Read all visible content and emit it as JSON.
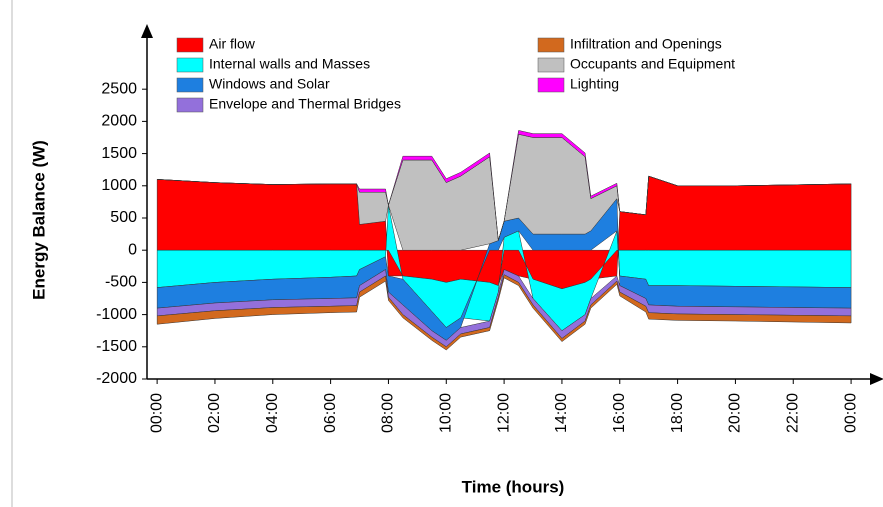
{
  "chart_data": {
    "type": "stacked_area",
    "y_label": "Energy Balance (W)",
    "x_label": "Time (hours)",
    "xlim": [
      -0.35,
      25
    ],
    "ylim": [
      -2000,
      3450
    ],
    "yticks": [
      -2000,
      -1500,
      -1000,
      -500,
      0,
      500,
      1000,
      1500,
      2000,
      2500
    ],
    "xticks": [
      {
        "value": 0,
        "label": "00:00"
      },
      {
        "value": 2,
        "label": "02:00"
      },
      {
        "value": 4,
        "label": "04:00"
      },
      {
        "value": 6,
        "label": "06:00"
      },
      {
        "value": 8,
        "label": "08:00"
      },
      {
        "value": 10,
        "label": "10:00"
      },
      {
        "value": 12,
        "label": "12:00"
      },
      {
        "value": 14,
        "label": "14:00"
      },
      {
        "value": 16,
        "label": "16:00"
      },
      {
        "value": 18,
        "label": "18:00"
      },
      {
        "value": 20,
        "label": "20:00"
      },
      {
        "value": 22,
        "label": "22:00"
      },
      {
        "value": 24,
        "label": "00:00"
      }
    ],
    "x": [
      0,
      2,
      4,
      6,
      6.9,
      7,
      7.9,
      8,
      8.5,
      9.5,
      10,
      10.5,
      11.5,
      11.8,
      12,
      12.5,
      13,
      14,
      14.8,
      15,
      15.9,
      16,
      16.9,
      17,
      18,
      20,
      24
    ],
    "series": [
      {
        "name": "Air flow",
        "color": "#ff0000",
        "values": [
          1100,
          1050,
          1020,
          1030,
          1030,
          400,
          450,
          -400,
          -400,
          -450,
          -500,
          -450,
          -500,
          -550,
          -300,
          -400,
          -450,
          -600,
          -500,
          -450,
          -400,
          600,
          550,
          1150,
          1000,
          1000,
          1030
        ]
      },
      {
        "name": "Internal walls and Masses",
        "color": "#00ffff",
        "values": [
          -580,
          -500,
          -450,
          -420,
          -400,
          -300,
          -100,
          700,
          -50,
          -500,
          -700,
          -600,
          -600,
          -100,
          200,
          300,
          -300,
          -650,
          -500,
          -300,
          300,
          -400,
          -450,
          -550,
          -550,
          -560,
          -580
        ]
      },
      {
        "name": "Windows and Solar",
        "color": "#1e7fe0",
        "values": [
          -320,
          -320,
          -320,
          -330,
          -340,
          -250,
          -200,
          -250,
          -400,
          -300,
          -200,
          -150,
          100,
          150,
          250,
          200,
          250,
          250,
          250,
          300,
          500,
          -150,
          -300,
          -300,
          -320,
          -320,
          -320
        ]
      },
      {
        "name": "Envelope and Thermal Bridges",
        "color": "#9370db",
        "values": [
          -120,
          -120,
          -120,
          -120,
          -120,
          -100,
          -100,
          -80,
          -150,
          -100,
          -100,
          -100,
          -100,
          -80,
          -80,
          -100,
          -100,
          -120,
          -100,
          -100,
          -80,
          -100,
          -120,
          -120,
          -120,
          -120,
          -120
        ]
      },
      {
        "name": "Infiltration and Openings",
        "color": "#d2691e",
        "values": [
          -130,
          -120,
          -110,
          -100,
          -100,
          -80,
          -80,
          -50,
          -50,
          -50,
          -50,
          -50,
          -50,
          -50,
          -50,
          -50,
          -50,
          -50,
          -50,
          -50,
          -50,
          -60,
          -90,
          -100,
          -100,
          -100,
          -110
        ]
      },
      {
        "name": "Occupants and Equipment",
        "color": "#c0c0c0",
        "values": [
          0,
          0,
          0,
          0,
          0,
          500,
          450,
          0,
          1400,
          1400,
          1050,
          1150,
          1350,
          0,
          0,
          1300,
          1500,
          1500,
          1200,
          500,
          200,
          0,
          0,
          0,
          0,
          0,
          0
        ]
      },
      {
        "name": "Lighting",
        "color": "#ff00ff",
        "values": [
          0,
          0,
          0,
          0,
          0,
          50,
          50,
          0,
          60,
          60,
          60,
          60,
          60,
          0,
          0,
          60,
          60,
          60,
          60,
          40,
          40,
          0,
          0,
          0,
          0,
          0,
          0
        ]
      }
    ]
  }
}
